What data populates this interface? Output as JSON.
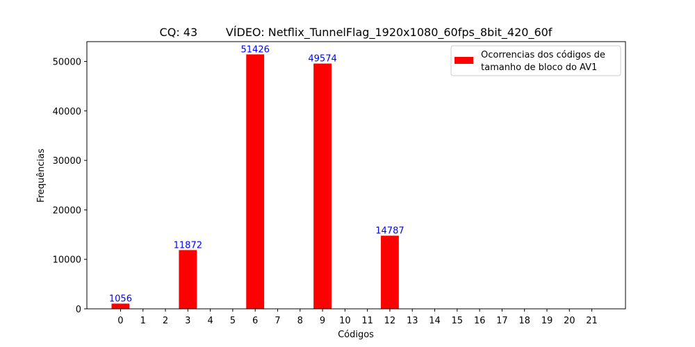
{
  "chart_data": {
    "type": "bar",
    "title": "CQ: 43        VÍDEO: Netflix_TunnelFlag_1920x1080_60fps_8bit_420_60f",
    "xlabel": "Códigos",
    "ylabel": "Frequências",
    "categories": [
      "0",
      "1",
      "2",
      "3",
      "4",
      "5",
      "6",
      "7",
      "8",
      "9",
      "10",
      "11",
      "12",
      "13",
      "14",
      "15",
      "16",
      "17",
      "18",
      "19",
      "20",
      "21"
    ],
    "series": [
      {
        "name": "Ocorrencias dos códigos de tamanho de bloco do AV1",
        "legend_lines": [
          "Ocorrencias dos códigos de",
          "tamanho de bloco do AV1"
        ],
        "values": [
          1056,
          0,
          0,
          11872,
          0,
          0,
          51426,
          0,
          0,
          49574,
          0,
          0,
          14787,
          0,
          0,
          0,
          0,
          0,
          0,
          0,
          0,
          0
        ],
        "color": "#ff0000"
      }
    ],
    "data_labels": [
      {
        "category": "0",
        "text": "1056"
      },
      {
        "category": "3",
        "text": "11872"
      },
      {
        "category": "6",
        "text": "51426"
      },
      {
        "category": "9",
        "text": "49574"
      },
      {
        "category": "12",
        "text": "14787"
      }
    ],
    "data_label_color": "#0000ff",
    "yticks": [
      0,
      10000,
      20000,
      30000,
      40000,
      50000
    ],
    "ytick_labels": [
      "0",
      "10000",
      "20000",
      "30000",
      "40000",
      "50000"
    ],
    "ylim": [
      0,
      54000
    ],
    "xlim": [
      -1.5,
      22.5
    ],
    "legend_position": "top-right",
    "grid": false
  }
}
